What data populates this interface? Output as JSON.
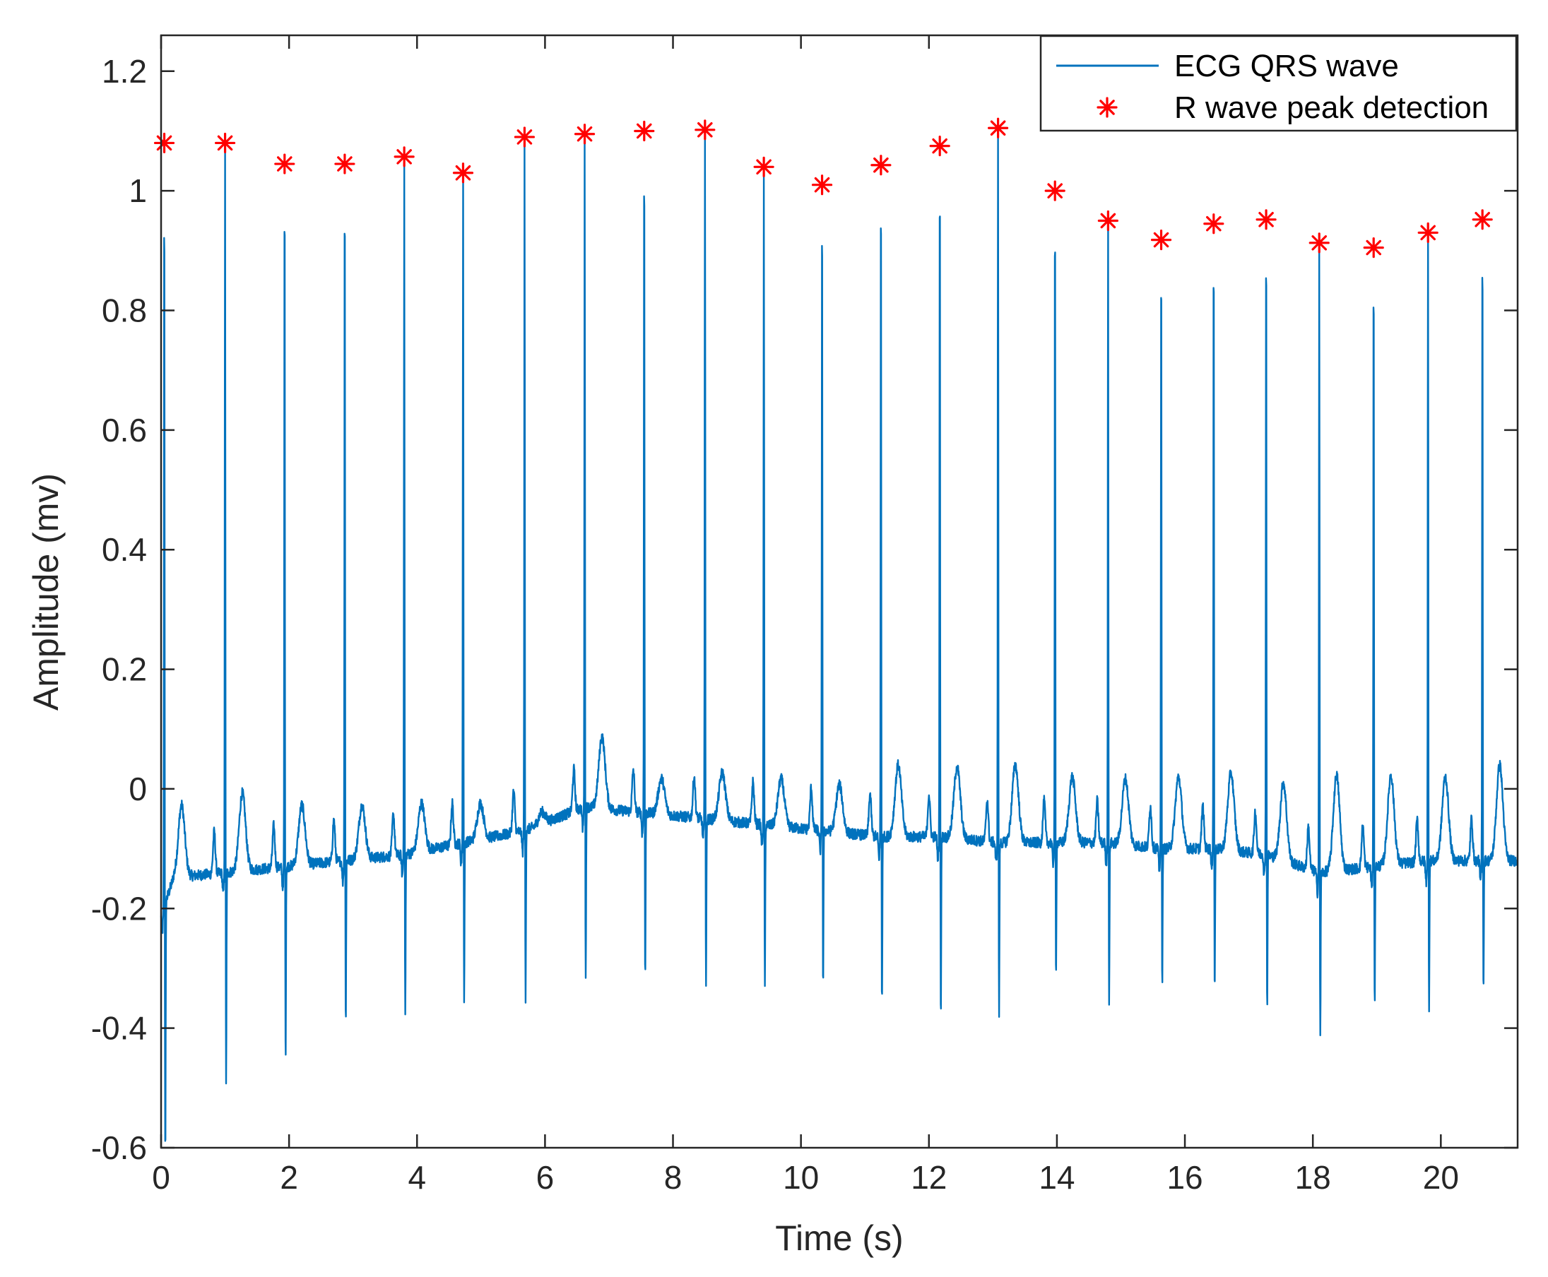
{
  "chart_data": {
    "type": "line",
    "title": "",
    "xlabel": "Time (s)",
    "ylabel": "Amplitude (mv)",
    "xlim": [
      0,
      21.2
    ],
    "ylim": [
      -0.6,
      1.26
    ],
    "xticks": [
      0,
      2,
      4,
      6,
      8,
      10,
      12,
      14,
      16,
      18,
      20
    ],
    "yticks": [
      -0.6,
      -0.4,
      -0.2,
      0,
      0.2,
      0.4,
      0.6,
      0.8,
      1,
      1.2
    ],
    "xtick_labels": [
      "0",
      "2",
      "4",
      "6",
      "8",
      "10",
      "12",
      "14",
      "16",
      "18",
      "20"
    ],
    "ytick_labels": [
      "-0.6",
      "-0.4",
      "-0.2",
      "0",
      "0.2",
      "0.4",
      "0.6",
      "0.8",
      "1",
      "1.2"
    ],
    "grid": false,
    "legend_position": "top-right",
    "legend": [
      "ECG QRS wave",
      "R wave peak detection"
    ],
    "colors": {
      "ecg": "#0072BD",
      "peaks": "#FF0000",
      "axis": "#262626"
    },
    "series": [
      {
        "name": "ECG QRS wave",
        "style": "line",
        "r_peak_times": [
          0.05,
          1.0,
          1.93,
          2.87,
          3.8,
          4.72,
          5.68,
          6.62,
          7.55,
          8.5,
          9.42,
          10.33,
          11.25,
          12.17,
          13.08,
          13.97,
          14.8,
          15.63,
          16.45,
          17.27,
          18.1,
          18.95,
          19.8,
          20.65
        ],
        "s_wave_minima": [
          -0.58,
          -0.5,
          -0.46,
          -0.4,
          -0.38,
          -0.36,
          -0.36,
          -0.32,
          -0.32,
          -0.34,
          -0.34,
          -0.34,
          -0.36,
          -0.38,
          -0.38,
          -0.32,
          -0.36,
          -0.33,
          -0.34,
          -0.37,
          -0.41,
          -0.36,
          -0.37,
          -0.34
        ],
        "t_wave_peaks": [
          -0.03,
          -0.01,
          -0.03,
          -0.03,
          -0.03,
          -0.03,
          -0.05,
          0.09,
          0.02,
          0.03,
          0.02,
          0.01,
          0.04,
          0.04,
          0.04,
          0.02,
          0.02,
          0.02,
          0.03,
          0.02,
          0.02,
          0.02,
          0.02,
          0.04
        ],
        "baseline": [
          -0.15,
          -0.14,
          -0.13,
          -0.12,
          -0.11,
          -0.09,
          -0.07,
          -0.03,
          -0.04,
          -0.05,
          -0.06,
          -0.07,
          -0.08,
          -0.08,
          -0.09,
          -0.09,
          -0.09,
          -0.1,
          -0.1,
          -0.11,
          -0.14,
          -0.13,
          -0.12,
          -0.12
        ]
      },
      {
        "name": "R wave peak detection",
        "style": "marker-asterisk",
        "x": [
          0.05,
          1.0,
          1.93,
          2.87,
          3.8,
          4.72,
          5.68,
          6.62,
          7.55,
          8.5,
          9.42,
          10.33,
          11.25,
          12.17,
          13.08,
          13.97,
          14.8,
          15.63,
          16.45,
          17.27,
          18.1,
          18.95,
          19.8,
          20.65
        ],
        "y": [
          1.08,
          1.08,
          1.045,
          1.045,
          1.057,
          1.03,
          1.09,
          1.095,
          1.1,
          1.102,
          1.04,
          1.01,
          1.043,
          1.075,
          1.105,
          1.0,
          0.95,
          0.918,
          0.945,
          0.952,
          0.913,
          0.905,
          0.93,
          0.952
        ]
      }
    ]
  }
}
